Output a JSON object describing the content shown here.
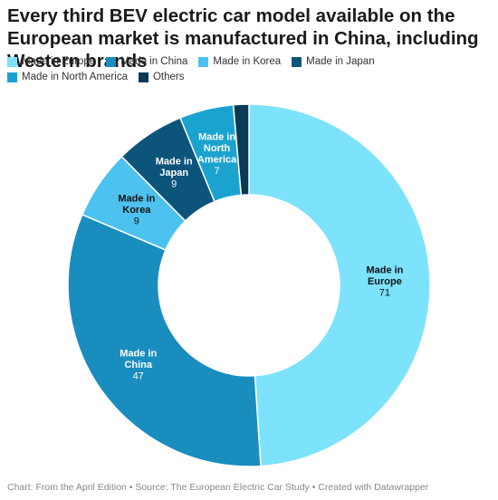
{
  "title": "Every third BEV electric car model available on the European market is manufactured in China, including Western brands",
  "notes": "Chart: From the April Edition • Source: The European Electric Car Study • Created with Datawrapper",
  "chart_data": {
    "type": "pie",
    "style": "donut",
    "title": "Every third BEV electric car model available on the European market is manufactured in China, including Western brands",
    "legend_position": "top",
    "categories": [
      "Made in Europe",
      "Made in China",
      "Made in Korea",
      "Made in Japan",
      "Made in North America",
      "Others"
    ],
    "values": [
      71,
      47,
      9,
      9,
      7,
      2
    ],
    "value_labels": [
      "71",
      "47",
      "9",
      "9",
      "7",
      ""
    ],
    "colors": [
      "#7de2fb",
      "#1a8dbf",
      "#4dc2ee",
      "#0d547a",
      "#1ba3d0",
      "#0a3a55"
    ],
    "label_colors": [
      "#111111",
      "#ffffff",
      "#111111",
      "#ffffff",
      "#ffffff",
      "#ffffff"
    ]
  }
}
